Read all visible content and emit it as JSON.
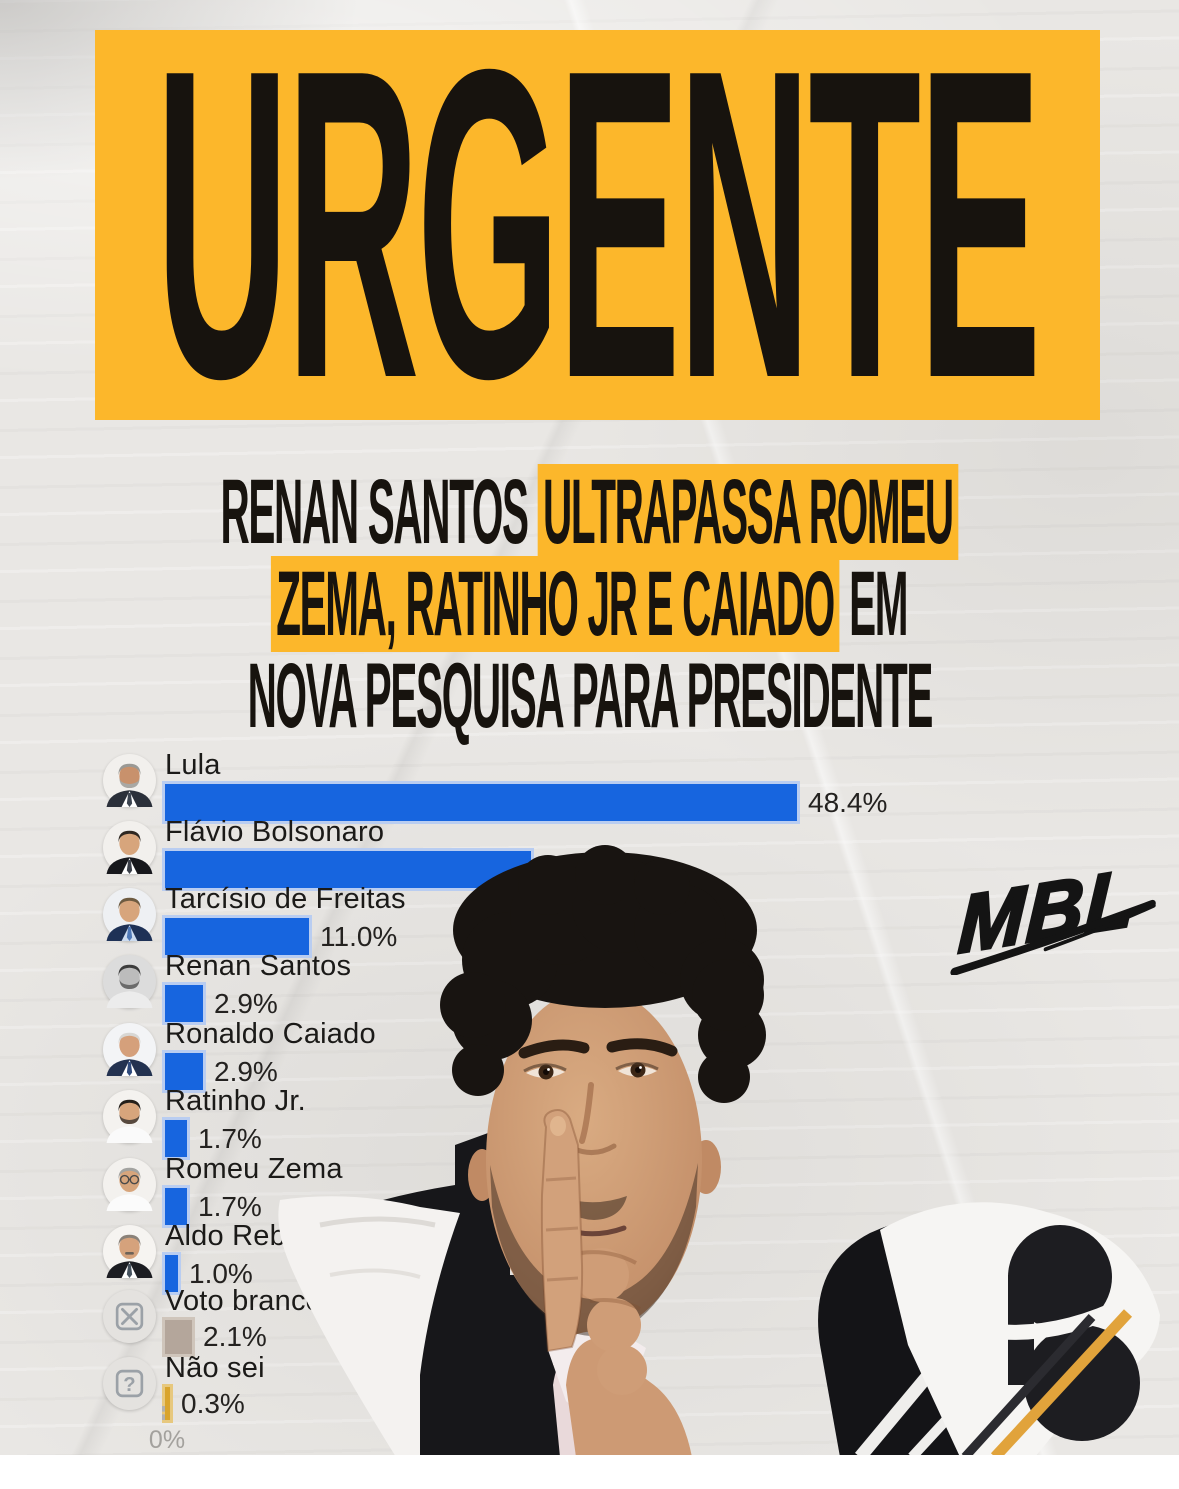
{
  "page": {
    "paper_color": "#e9e7e4",
    "bottom_band_color": "#ffffff"
  },
  "banner": {
    "text": "URGENTE",
    "bg_color": "#fcb72b",
    "text_color": "#17130e"
  },
  "headline": {
    "highlight_color": "#fcb72b",
    "text_color": "#17130e",
    "lines": [
      [
        {
          "t": "RENAN SANTOS ",
          "h": false
        },
        {
          "t": "ULTRAPASSA ROMEU",
          "h": true
        }
      ],
      [
        {
          "t": "ZEMA, RATINHO JR E CAIADO",
          "h": true
        },
        {
          "t": " EM",
          "h": false
        }
      ],
      [
        {
          "t": "NOVA PESQUISA PARA PRESIDENTE",
          "h": false
        }
      ]
    ]
  },
  "watermark": {
    "label": "MBL",
    "color": "#141414"
  },
  "icons": {
    "voto_branco": "ballot-x-icon",
    "nao_sei": "question-icon"
  },
  "chart_data": {
    "type": "bar",
    "orientation": "horizontal",
    "unit": "percent",
    "title": "",
    "axis": {
      "zero_label": "0%"
    },
    "scale_max_percent": 48.4,
    "default_bar_color": "#1765df",
    "default_bar_edge": "#b9cdf1",
    "bars": [
      {
        "name": "Lula",
        "value": 48.4,
        "value_label": "48.4%"
      },
      {
        "name": "Flávio Bolsonaro",
        "value": 28.0,
        "value_label": ""
      },
      {
        "name": "Tarcísio de Freitas",
        "value": 11.0,
        "value_label": "11.0%"
      },
      {
        "name": "Renan Santos",
        "value": 2.9,
        "value_label": "2.9%"
      },
      {
        "name": "Ronaldo Caiado",
        "value": 2.9,
        "value_label": "2.9%"
      },
      {
        "name": "Ratinho Jr.",
        "value": 1.7,
        "value_label": "1.7%"
      },
      {
        "name": "Romeu Zema",
        "value": 1.7,
        "value_label": "1.7%"
      },
      {
        "name": "Aldo Rebelo",
        "value": 1.0,
        "value_label": "1.0%"
      },
      {
        "name": "Voto branco",
        "value": 2.1,
        "value_label": "2.1%",
        "color": "#b4a69b",
        "edge": "#cfc5bb",
        "h": 34
      },
      {
        "name": "Não sei",
        "value": 0.3,
        "value_label": "0.3%",
        "color": "#d9a42c",
        "edge": "#e7c87e",
        "h": 33
      }
    ],
    "avatars": [
      {
        "bg": "#f2f0ed",
        "skin": "#c8916c",
        "hair": "#9a9995",
        "beard": "#a9a8a4",
        "suit": "#2b303a",
        "shirt": "#ffffff",
        "tie": "#3c4450"
      },
      {
        "bg": "#f2f0ed",
        "skin": "#d7a57c",
        "hair": "#2e2721",
        "suit": "#17181c",
        "shirt": "#ffffff",
        "tie": "#3a3f49"
      },
      {
        "bg": "#eef0f3",
        "skin": "#d7a57c",
        "hair": "#6e5b41",
        "suit": "#1e3156",
        "shirt": "#cddcf0",
        "tie": "#4f79b8"
      },
      {
        "bg": "#dcdcdc",
        "skin": "#bcbcbc",
        "hair": "#3c3c3c",
        "beard": "#6b6b6b",
        "suit": "#ececec"
      },
      {
        "bg": "#f3f4f6",
        "skin": "#d5a07b",
        "hair": "#d8d7d4",
        "suit": "#233250",
        "shirt": "#ffffff",
        "tie": "#2f4a7c"
      },
      {
        "bg": "#f4f2ef",
        "skin": "#d7a57c",
        "hair": "#241f1a",
        "beard": "#57493e",
        "suit": "#fafafa"
      },
      {
        "bg": "#f3f1ee",
        "skin": "#d7a57c",
        "hair": "#a3a3a0",
        "suit": "#fbfbfb",
        "glasses": "#4a4a4a"
      },
      {
        "bg": "#f6f4f1",
        "skin": "#d5a27c",
        "hair": "#8a8178",
        "mustache": "#6d6258",
        "suit": "#1c1d22",
        "shirt": "#ffffff",
        "tie": "#46525e"
      },
      {
        "icon": "x",
        "bg": "#e4e2df",
        "fg": "#9ba1a7"
      },
      {
        "icon": "?",
        "bg": "#e4e2df",
        "fg": "#9ba1a7"
      }
    ]
  }
}
